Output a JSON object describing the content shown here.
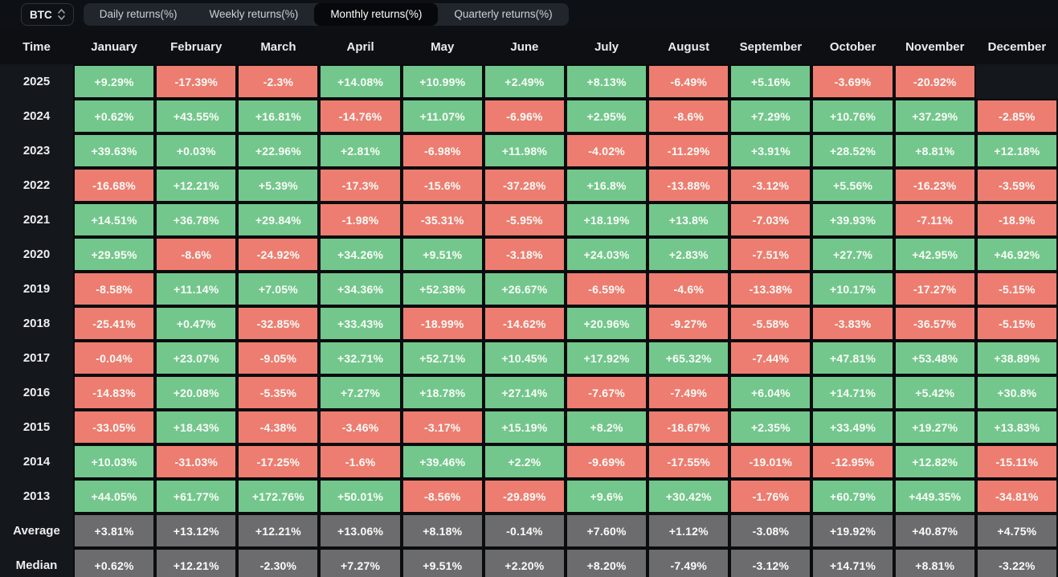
{
  "toolbar": {
    "symbol_select": {
      "value": "BTC"
    },
    "tabs": [
      {
        "label": "Daily returns(%)",
        "active": false
      },
      {
        "label": "Weekly returns(%)",
        "active": false
      },
      {
        "label": "Monthly returns(%)",
        "active": true
      },
      {
        "label": "Quarterly returns(%)",
        "active": false
      }
    ]
  },
  "colors": {
    "positive": "#73c78c",
    "negative": "#ed7d70",
    "summary": "#6c6c6e"
  },
  "chart_data": {
    "type": "heatmap",
    "title": "BTC Monthly returns(%)",
    "columns": [
      "Time",
      "January",
      "February",
      "March",
      "April",
      "May",
      "June",
      "July",
      "August",
      "September",
      "October",
      "November",
      "December"
    ],
    "rows": [
      {
        "label": "2025",
        "summary": false,
        "values": [
          "+9.29%",
          "-17.39%",
          "-2.3%",
          "+14.08%",
          "+10.99%",
          "+2.49%",
          "+8.13%",
          "-6.49%",
          "+5.16%",
          "-3.69%",
          "-20.92%",
          ""
        ]
      },
      {
        "label": "2024",
        "summary": false,
        "values": [
          "+0.62%",
          "+43.55%",
          "+16.81%",
          "-14.76%",
          "+11.07%",
          "-6.96%",
          "+2.95%",
          "-8.6%",
          "+7.29%",
          "+10.76%",
          "+37.29%",
          "-2.85%"
        ]
      },
      {
        "label": "2023",
        "summary": false,
        "values": [
          "+39.63%",
          "+0.03%",
          "+22.96%",
          "+2.81%",
          "-6.98%",
          "+11.98%",
          "-4.02%",
          "-11.29%",
          "+3.91%",
          "+28.52%",
          "+8.81%",
          "+12.18%"
        ]
      },
      {
        "label": "2022",
        "summary": false,
        "values": [
          "-16.68%",
          "+12.21%",
          "+5.39%",
          "-17.3%",
          "-15.6%",
          "-37.28%",
          "+16.8%",
          "-13.88%",
          "-3.12%",
          "+5.56%",
          "-16.23%",
          "-3.59%"
        ]
      },
      {
        "label": "2021",
        "summary": false,
        "values": [
          "+14.51%",
          "+36.78%",
          "+29.84%",
          "-1.98%",
          "-35.31%",
          "-5.95%",
          "+18.19%",
          "+13.8%",
          "-7.03%",
          "+39.93%",
          "-7.11%",
          "-18.9%"
        ]
      },
      {
        "label": "2020",
        "summary": false,
        "values": [
          "+29.95%",
          "-8.6%",
          "-24.92%",
          "+34.26%",
          "+9.51%",
          "-3.18%",
          "+24.03%",
          "+2.83%",
          "-7.51%",
          "+27.7%",
          "+42.95%",
          "+46.92%"
        ]
      },
      {
        "label": "2019",
        "summary": false,
        "values": [
          "-8.58%",
          "+11.14%",
          "+7.05%",
          "+34.36%",
          "+52.38%",
          "+26.67%",
          "-6.59%",
          "-4.6%",
          "-13.38%",
          "+10.17%",
          "-17.27%",
          "-5.15%"
        ]
      },
      {
        "label": "2018",
        "summary": false,
        "values": [
          "-25.41%",
          "+0.47%",
          "-32.85%",
          "+33.43%",
          "-18.99%",
          "-14.62%",
          "+20.96%",
          "-9.27%",
          "-5.58%",
          "-3.83%",
          "-36.57%",
          "-5.15%"
        ]
      },
      {
        "label": "2017",
        "summary": false,
        "values": [
          "-0.04%",
          "+23.07%",
          "-9.05%",
          "+32.71%",
          "+52.71%",
          "+10.45%",
          "+17.92%",
          "+65.32%",
          "-7.44%",
          "+47.81%",
          "+53.48%",
          "+38.89%"
        ]
      },
      {
        "label": "2016",
        "summary": false,
        "values": [
          "-14.83%",
          "+20.08%",
          "-5.35%",
          "+7.27%",
          "+18.78%",
          "+27.14%",
          "-7.67%",
          "-7.49%",
          "+6.04%",
          "+14.71%",
          "+5.42%",
          "+30.8%"
        ]
      },
      {
        "label": "2015",
        "summary": false,
        "values": [
          "-33.05%",
          "+18.43%",
          "-4.38%",
          "-3.46%",
          "-3.17%",
          "+15.19%",
          "+8.2%",
          "-18.67%",
          "+2.35%",
          "+33.49%",
          "+19.27%",
          "+13.83%"
        ]
      },
      {
        "label": "2014",
        "summary": false,
        "values": [
          "+10.03%",
          "-31.03%",
          "-17.25%",
          "-1.6%",
          "+39.46%",
          "+2.2%",
          "-9.69%",
          "-17.55%",
          "-19.01%",
          "-12.95%",
          "+12.82%",
          "-15.11%"
        ]
      },
      {
        "label": "2013",
        "summary": false,
        "values": [
          "+44.05%",
          "+61.77%",
          "+172.76%",
          "+50.01%",
          "-8.56%",
          "-29.89%",
          "+9.6%",
          "+30.42%",
          "-1.76%",
          "+60.79%",
          "+449.35%",
          "-34.81%"
        ]
      },
      {
        "label": "Average",
        "summary": true,
        "values": [
          "+3.81%",
          "+13.12%",
          "+12.21%",
          "+13.06%",
          "+8.18%",
          "-0.14%",
          "+7.60%",
          "+1.12%",
          "-3.08%",
          "+19.92%",
          "+40.87%",
          "+4.75%"
        ]
      },
      {
        "label": "Median",
        "summary": true,
        "values": [
          "+0.62%",
          "+12.21%",
          "-2.30%",
          "+7.27%",
          "+9.51%",
          "+2.20%",
          "+8.20%",
          "-7.49%",
          "-3.12%",
          "+14.71%",
          "+8.81%",
          "-3.22%"
        ]
      }
    ]
  }
}
